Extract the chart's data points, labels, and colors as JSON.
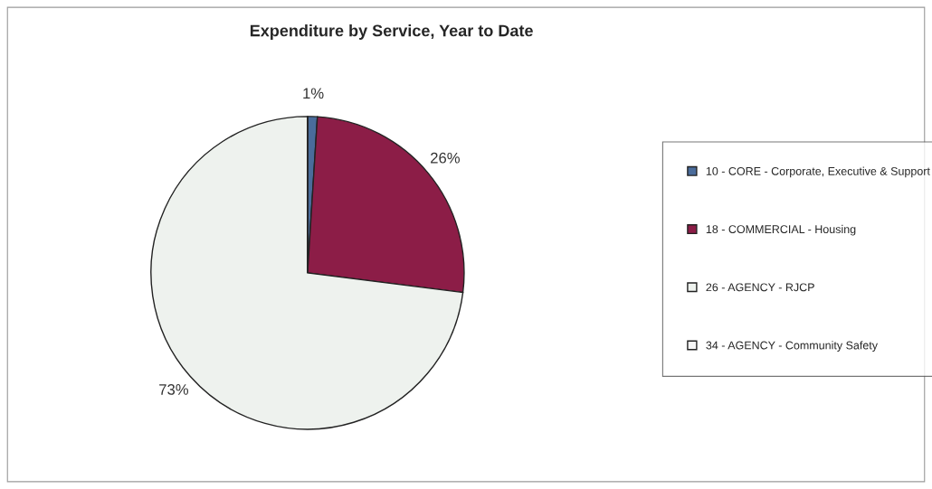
{
  "chart_data": {
    "type": "pie",
    "title": "Expenditure by Service, Year to Date",
    "categories": [
      "10 - CORE - Corporate, Executive & Support",
      "18 - COMMERCIAL - Housing",
      "26 - AGENCY - RJCP",
      "34 - AGENCY - Community Safety"
    ],
    "values": [
      1,
      26,
      73,
      0
    ],
    "value_labels": [
      "1%",
      "26%",
      "73%",
      null
    ],
    "colors": [
      "#4a6c9b",
      "#8c1d47",
      "#eef2ee",
      "#f6f6f6"
    ],
    "legend": "right"
  }
}
